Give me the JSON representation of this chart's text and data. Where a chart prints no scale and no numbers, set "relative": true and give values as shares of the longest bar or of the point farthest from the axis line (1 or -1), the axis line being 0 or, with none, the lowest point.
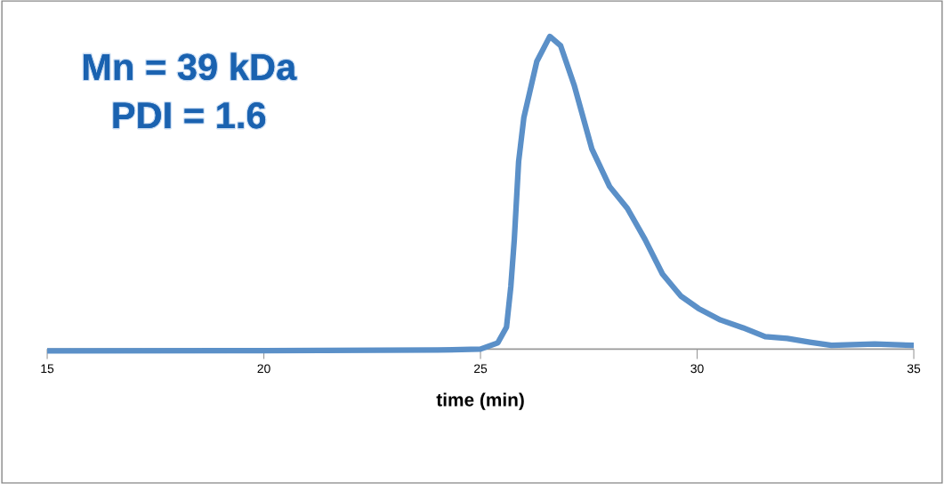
{
  "chart_data": {
    "type": "line",
    "relative": true,
    "xlabel": "time (min)",
    "annotations": [
      "Mn = 39 kDa",
      "PDI = 1.6"
    ],
    "xlim": [
      15,
      35
    ],
    "xticks": [
      15,
      20,
      25,
      30,
      35
    ],
    "marker": "none",
    "line_style": "solid",
    "series": [
      {
        "color": "#5b90c8",
        "x": [
          15,
          20,
          24,
          25,
          25.4,
          25.6,
          25.7,
          25.78,
          25.88,
          26.0,
          26.3,
          26.6,
          26.85,
          27.16,
          27.57,
          27.98,
          28.39,
          28.8,
          29.2,
          29.62,
          30.03,
          30.54,
          31.06,
          31.57,
          32.08,
          32.6,
          33.1,
          34.1,
          35
        ],
        "values": [
          -0.006,
          -0.005,
          -0.003,
          0,
          0.02,
          0.07,
          0.2,
          0.35,
          0.6,
          0.74,
          0.92,
          1.0,
          0.97,
          0.845,
          0.64,
          0.52,
          0.45,
          0.35,
          0.24,
          0.17,
          0.13,
          0.093,
          0.068,
          0.04,
          0.034,
          0.022,
          0.012,
          0.016,
          0.012
        ]
      }
    ]
  }
}
